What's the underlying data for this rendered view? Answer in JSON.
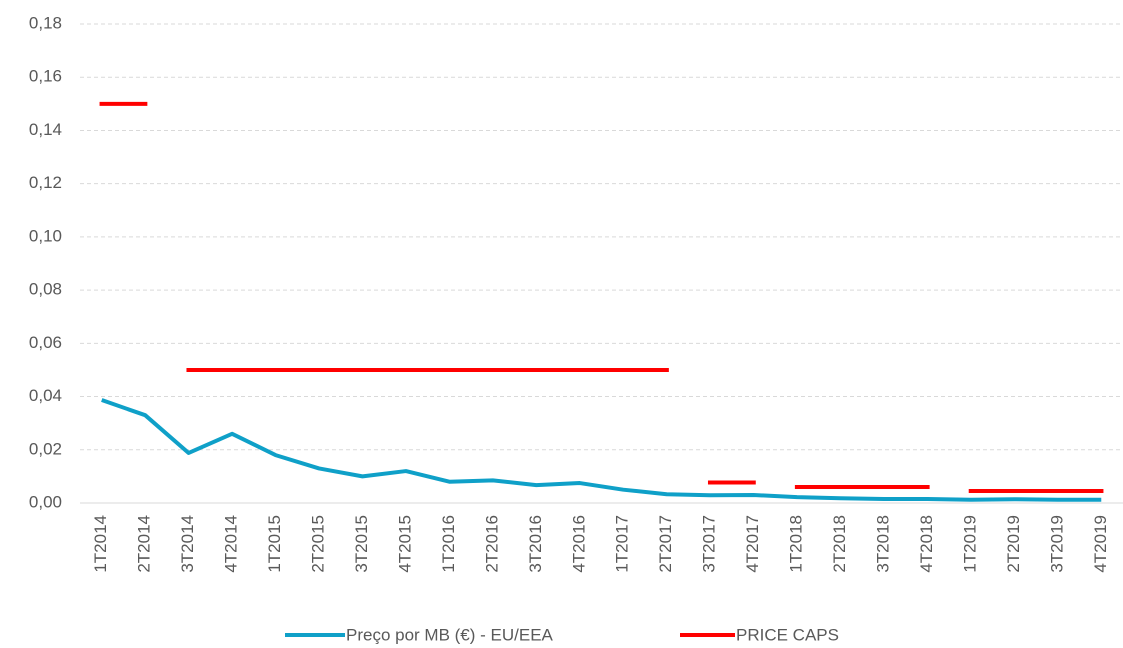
{
  "chart_data": {
    "type": "line",
    "categories": [
      "1T2014",
      "2T2014",
      "3T2014",
      "4T2014",
      "1T2015",
      "2T2015",
      "3T2015",
      "4T2015",
      "1T2016",
      "2T2016",
      "3T2016",
      "4T2016",
      "1T2017",
      "2T2017",
      "3T2017",
      "4T2017",
      "1T2018",
      "2T2018",
      "3T2018",
      "4T2018",
      "1T2019",
      "2T2019",
      "3T2019",
      "4T2019"
    ],
    "series": [
      {
        "name": "Preço por MB (€) - EU/EEA",
        "color": "#0fa0c8",
        "values": [
          0.0387,
          0.033,
          0.0188,
          0.026,
          0.018,
          0.013,
          0.01,
          0.012,
          0.008,
          0.0085,
          0.0067,
          0.0075,
          0.005,
          0.0033,
          0.0029,
          0.003,
          0.0022,
          0.0018,
          0.0015,
          0.0015,
          0.0012,
          0.0014,
          0.0012,
          0.0012
        ]
      },
      {
        "name": "PRICE CAPS",
        "color": "#ff0000",
        "values": [
          0.15,
          0.15,
          0.05,
          0.05,
          0.05,
          0.05,
          0.05,
          0.05,
          0.05,
          0.05,
          0.05,
          0.05,
          0.05,
          0.05,
          0.0077,
          0.0077,
          0.006,
          0.006,
          0.006,
          0.006,
          0.0045,
          0.0045,
          0.0045,
          0.0045
        ]
      }
    ],
    "ylim": [
      0,
      0.18
    ],
    "yticks": [
      {
        "value": 0,
        "label": "0,00"
      },
      {
        "value": 0.02,
        "label": "0,02"
      },
      {
        "value": 0.04,
        "label": "0,04"
      },
      {
        "value": 0.06,
        "label": "0,06"
      },
      {
        "value": 0.08,
        "label": "0,08"
      },
      {
        "value": 0.1,
        "label": "0,10"
      },
      {
        "value": 0.12,
        "label": "0,12"
      },
      {
        "value": 0.14,
        "label": "0,14"
      },
      {
        "value": 0.16,
        "label": "0,16"
      },
      {
        "value": 0.18,
        "label": "0,18"
      }
    ],
    "grid": true,
    "legend": "bottom"
  }
}
